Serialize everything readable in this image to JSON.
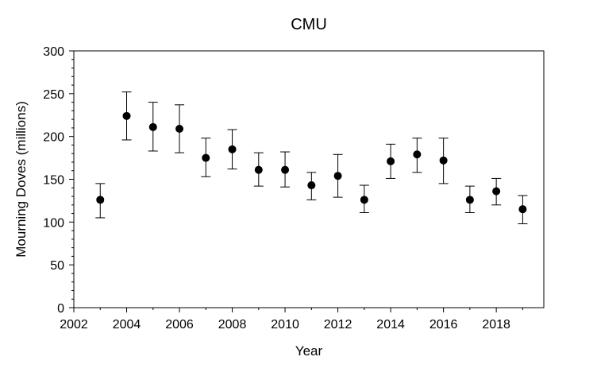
{
  "chart_data": {
    "type": "scatter",
    "title": "CMU",
    "xlabel": "Year",
    "ylabel": "Mourning Doves (millions)",
    "xlim": [
      2002,
      2019.8
    ],
    "ylim": [
      0,
      300
    ],
    "x_ticks": [
      "2002",
      "2004",
      "2006",
      "2008",
      "2010",
      "2012",
      "2014",
      "2016",
      "2018"
    ],
    "y_ticks": [
      "0",
      "50",
      "100",
      "150",
      "200",
      "250",
      "300"
    ],
    "x_minor_step": 1,
    "y_minor_step": 10,
    "grid": false,
    "legend": null,
    "series": [
      {
        "name": "CMU",
        "x": [
          2003,
          2004,
          2005,
          2006,
          2007,
          2008,
          2009,
          2010,
          2011,
          2012,
          2013,
          2014,
          2015,
          2016,
          2017,
          2018,
          2019
        ],
        "y": [
          126,
          224,
          211,
          209,
          175,
          185,
          161,
          161,
          143,
          154,
          126,
          171,
          179,
          172,
          126,
          136,
          115
        ],
        "err_low": [
          105,
          196,
          183,
          181,
          153,
          162,
          142,
          141,
          126,
          129,
          111,
          151,
          158,
          145,
          111,
          120,
          98
        ],
        "err_high": [
          145,
          252,
          240,
          237,
          198,
          208,
          181,
          182,
          158,
          179,
          143,
          191,
          198,
          198,
          142,
          151,
          131
        ],
        "color": "#000000"
      }
    ]
  }
}
